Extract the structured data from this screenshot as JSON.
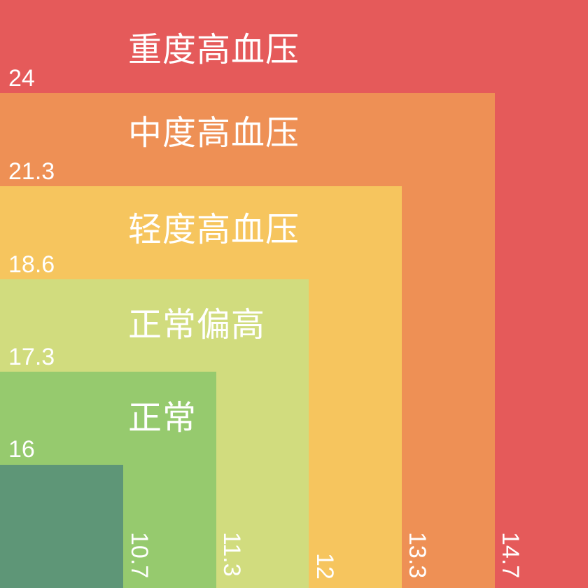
{
  "zones": [
    {
      "title": "重度高血压",
      "systolic": "24",
      "diastolic": "14.7",
      "color": "#e55a5a"
    },
    {
      "title": "中度高血压",
      "systolic": "21.3",
      "diastolic": "13.3",
      "color": "#ee9055"
    },
    {
      "title": "轻度高血压",
      "systolic": "18.6",
      "diastolic": "12",
      "color": "#f6c55e"
    },
    {
      "title": "正常偏高",
      "systolic": "17.3",
      "diastolic": "11.3",
      "color": "#d1dc7e"
    },
    {
      "title": "正常",
      "systolic": "16",
      "diastolic": "10.7",
      "color": "#96ca6e"
    },
    {
      "title": "",
      "systolic": "",
      "diastolic": "",
      "color": "#5e9677"
    }
  ]
}
